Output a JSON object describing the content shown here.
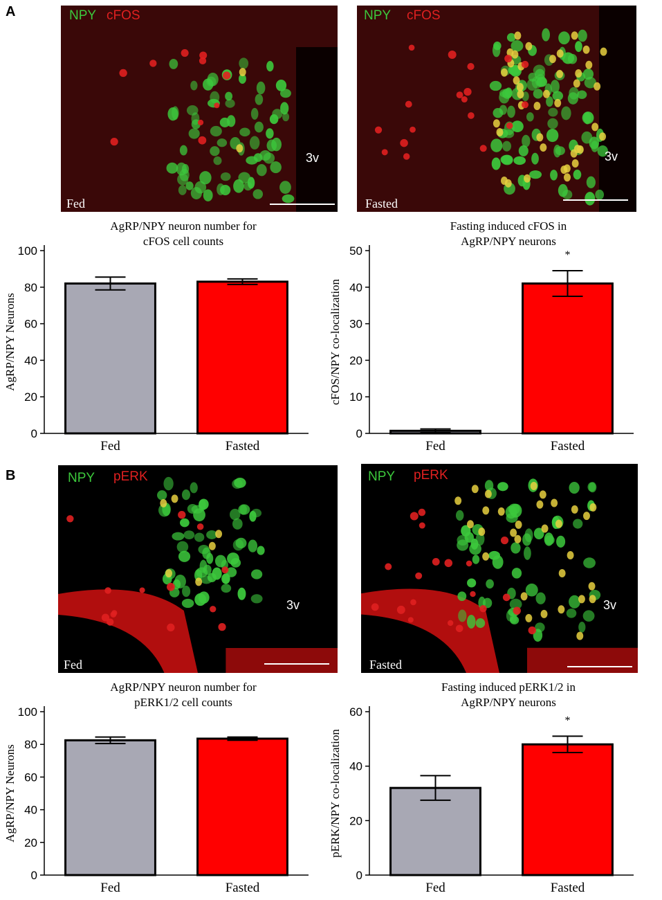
{
  "panels": [
    {
      "letter": "A",
      "images": [
        {
          "stain_green": "NPY",
          "stain_red": "cFOS",
          "condition": "Fed",
          "ventricle": "3v"
        },
        {
          "stain_green": "NPY",
          "stain_red": "cFOS",
          "condition": "Fasted",
          "ventricle": "3v"
        }
      ]
    },
    {
      "letter": "B",
      "images": [
        {
          "stain_green": "NPY",
          "stain_red": "pERK",
          "condition": "Fed",
          "ventricle": "3v"
        },
        {
          "stain_green": "NPY",
          "stain_red": "pERK",
          "condition": "Fasted",
          "ventricle": "3v"
        }
      ]
    }
  ],
  "colors": {
    "fed": "#a8a8b4",
    "fasted": "#ff0000",
    "green_stain": "#3cc83c",
    "red_stain": "#e02020"
  },
  "chart_data": [
    {
      "type": "bar",
      "title": "AgRP/NPY neuron number for cFOS cell counts",
      "title_lines": [
        "AgRP/NPY neuron number for",
        "cFOS cell counts"
      ],
      "ylabel": "AgRP/NPY Neurons",
      "categories": [
        "Fed",
        "Fasted"
      ],
      "values": [
        82,
        83
      ],
      "errors": [
        3.5,
        1.5
      ],
      "ylim": [
        0,
        100
      ],
      "yticks": [
        "0",
        "20",
        "40",
        "60",
        "80",
        "100"
      ],
      "annotation": ""
    },
    {
      "type": "bar",
      "title": "Fasting induced cFOS in AgRP/NPY neurons",
      "title_lines": [
        "Fasting induced cFOS in",
        "AgRP/NPY neurons"
      ],
      "ylabel": "cFOS/NPY co-localization",
      "categories": [
        "Fed",
        "Fasted"
      ],
      "values": [
        0.7,
        41
      ],
      "errors": [
        0.5,
        3.5
      ],
      "ylim": [
        0,
        50
      ],
      "yticks": [
        "0",
        "10",
        "20",
        "30",
        "40",
        "50"
      ],
      "annotation": "*"
    },
    {
      "type": "bar",
      "title": "AgRP/NPY neuron number for pERK1/2 cell counts",
      "title_lines": [
        "AgRP/NPY neuron number for",
        "pERK1/2 cell counts"
      ],
      "ylabel": "AgRP/NPY Neurons",
      "categories": [
        "Fed",
        "Fasted"
      ],
      "values": [
        82.5,
        83.5
      ],
      "errors": [
        2.0,
        1.0
      ],
      "ylim": [
        0,
        100
      ],
      "yticks": [
        "0",
        "20",
        "40",
        "60",
        "80",
        "100"
      ],
      "annotation": ""
    },
    {
      "type": "bar",
      "title": "Fasting induced pERK1/2 in AgRP/NPY neurons",
      "title_lines": [
        "Fasting induced pERK1/2 in",
        "AgRP/NPY  neurons"
      ],
      "ylabel": "pERK/NPY co-localization",
      "categories": [
        "Fed",
        "Fasted"
      ],
      "values": [
        32,
        48
      ],
      "errors": [
        4.5,
        3.0
      ],
      "ylim": [
        0,
        60
      ],
      "yticks": [
        "0",
        "20",
        "40",
        "60"
      ],
      "annotation": "*"
    }
  ]
}
